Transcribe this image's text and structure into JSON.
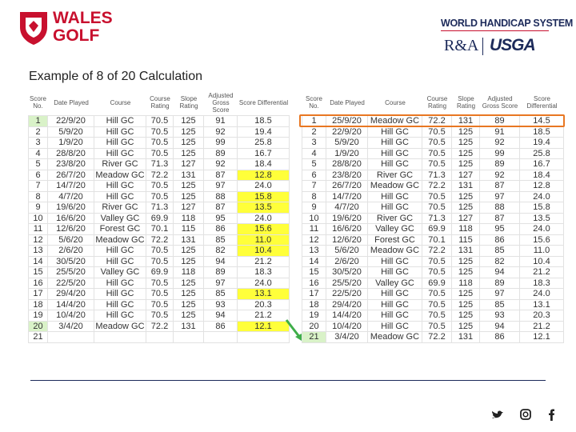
{
  "logo": {
    "line1": "WALES",
    "line2": "GOLF"
  },
  "partner": {
    "title": "WORLD HANDICAP SYSTEM",
    "ra": "R&A",
    "usga": "USGA"
  },
  "title": "Example of 8 of 20 Calculation",
  "tables": [
    {
      "headers": [
        "Score No.",
        "Date Played",
        "Course",
        "Course Rating",
        "Slope Rating",
        "Adjusted Gross Score",
        "Score Differential"
      ],
      "rows": [
        [
          "1",
          "22/9/20",
          "Hill GC",
          "70.5",
          "125",
          "91",
          "18.5"
        ],
        [
          "2",
          "5/9/20",
          "Hill GC",
          "70.5",
          "125",
          "92",
          "19.4"
        ],
        [
          "3",
          "1/9/20",
          "Hill GC",
          "70.5",
          "125",
          "99",
          "25.8"
        ],
        [
          "4",
          "28/8/20",
          "Hill GC",
          "70.5",
          "125",
          "89",
          "16.7"
        ],
        [
          "5",
          "23/8/20",
          "River GC",
          "71.3",
          "127",
          "92",
          "18.4"
        ],
        [
          "6",
          "26/7/20",
          "Meadow GC",
          "72.2",
          "131",
          "87",
          "12.8"
        ],
        [
          "7",
          "14/7/20",
          "Hill GC",
          "70.5",
          "125",
          "97",
          "24.0"
        ],
        [
          "8",
          "4/7/20",
          "Hill GC",
          "70.5",
          "125",
          "88",
          "15.8"
        ],
        [
          "9",
          "19/6/20",
          "River GC",
          "71.3",
          "127",
          "87",
          "13.5"
        ],
        [
          "10",
          "16/6/20",
          "Valley GC",
          "69.9",
          "118",
          "95",
          "24.0"
        ],
        [
          "11",
          "12/6/20",
          "Forest GC",
          "70.1",
          "115",
          "86",
          "15.6"
        ],
        [
          "12",
          "5/6/20",
          "Meadow GC",
          "72.2",
          "131",
          "85",
          "11.0"
        ],
        [
          "13",
          "2/6/20",
          "Hill GC",
          "70.5",
          "125",
          "82",
          "10.4"
        ],
        [
          "14",
          "30/5/20",
          "Hill GC",
          "70.5",
          "125",
          "94",
          "21.2"
        ],
        [
          "15",
          "25/5/20",
          "Valley GC",
          "69.9",
          "118",
          "89",
          "18.3"
        ],
        [
          "16",
          "22/5/20",
          "Hill GC",
          "70.5",
          "125",
          "97",
          "24.0"
        ],
        [
          "17",
          "29/4/20",
          "Hill GC",
          "70.5",
          "125",
          "85",
          "13.1"
        ],
        [
          "18",
          "14/4/20",
          "Hill GC",
          "70.5",
          "125",
          "93",
          "20.3"
        ],
        [
          "19",
          "10/4/20",
          "Hill GC",
          "70.5",
          "125",
          "94",
          "21.2"
        ],
        [
          "20",
          "3/4/20",
          "Meadow GC",
          "72.2",
          "131",
          "86",
          "12.1"
        ],
        [
          "21"
        ]
      ]
    },
    {
      "headers": [
        "Score No.",
        "Date Played",
        "Course",
        "Course Rating",
        "Slope Rating",
        "Adjusted Gross Score",
        "Score Differential"
      ],
      "rows": [
        [
          "1",
          "25/9/20",
          "Meadow GC",
          "72.2",
          "131",
          "89",
          "14.5"
        ],
        [
          "2",
          "22/9/20",
          "Hill GC",
          "70.5",
          "125",
          "91",
          "18.5"
        ],
        [
          "3",
          "5/9/20",
          "Hill GC",
          "70.5",
          "125",
          "92",
          "19.4"
        ],
        [
          "4",
          "1/9/20",
          "Hill GC",
          "70.5",
          "125",
          "99",
          "25.8"
        ],
        [
          "5",
          "28/8/20",
          "Hill GC",
          "70.5",
          "125",
          "89",
          "16.7"
        ],
        [
          "6",
          "23/8/20",
          "River GC",
          "71.3",
          "127",
          "92",
          "18.4"
        ],
        [
          "7",
          "26/7/20",
          "Meadow GC",
          "72.2",
          "131",
          "87",
          "12.8"
        ],
        [
          "8",
          "14/7/20",
          "Hill GC",
          "70.5",
          "125",
          "97",
          "24.0"
        ],
        [
          "9",
          "4/7/20",
          "Hill GC",
          "70.5",
          "125",
          "88",
          "15.8"
        ],
        [
          "10",
          "19/6/20",
          "River GC",
          "71.3",
          "127",
          "87",
          "13.5"
        ],
        [
          "11",
          "16/6/20",
          "Valley GC",
          "69.9",
          "118",
          "95",
          "24.0"
        ],
        [
          "12",
          "12/6/20",
          "Forest GC",
          "70.1",
          "115",
          "86",
          "15.6"
        ],
        [
          "13",
          "5/6/20",
          "Meadow GC",
          "72.2",
          "131",
          "85",
          "11.0"
        ],
        [
          "14",
          "2/6/20",
          "Hill GC",
          "70.5",
          "125",
          "82",
          "10.4"
        ],
        [
          "15",
          "30/5/20",
          "Hill GC",
          "70.5",
          "125",
          "94",
          "21.2"
        ],
        [
          "16",
          "25/5/20",
          "Valley GC",
          "69.9",
          "118",
          "89",
          "18.3"
        ],
        [
          "17",
          "22/5/20",
          "Hill GC",
          "70.5",
          "125",
          "97",
          "24.0"
        ],
        [
          "18",
          "29/4/20",
          "Hill GC",
          "70.5",
          "125",
          "85",
          "13.1"
        ],
        [
          "19",
          "14/4/20",
          "Hill GC",
          "70.5",
          "125",
          "93",
          "20.3"
        ],
        [
          "20",
          "10/4/20",
          "Hill GC",
          "70.5",
          "125",
          "94",
          "21.2"
        ],
        [
          "21",
          "3/4/20",
          "Meadow GC",
          "72.2",
          "131",
          "86",
          "12.1"
        ]
      ]
    }
  ]
}
